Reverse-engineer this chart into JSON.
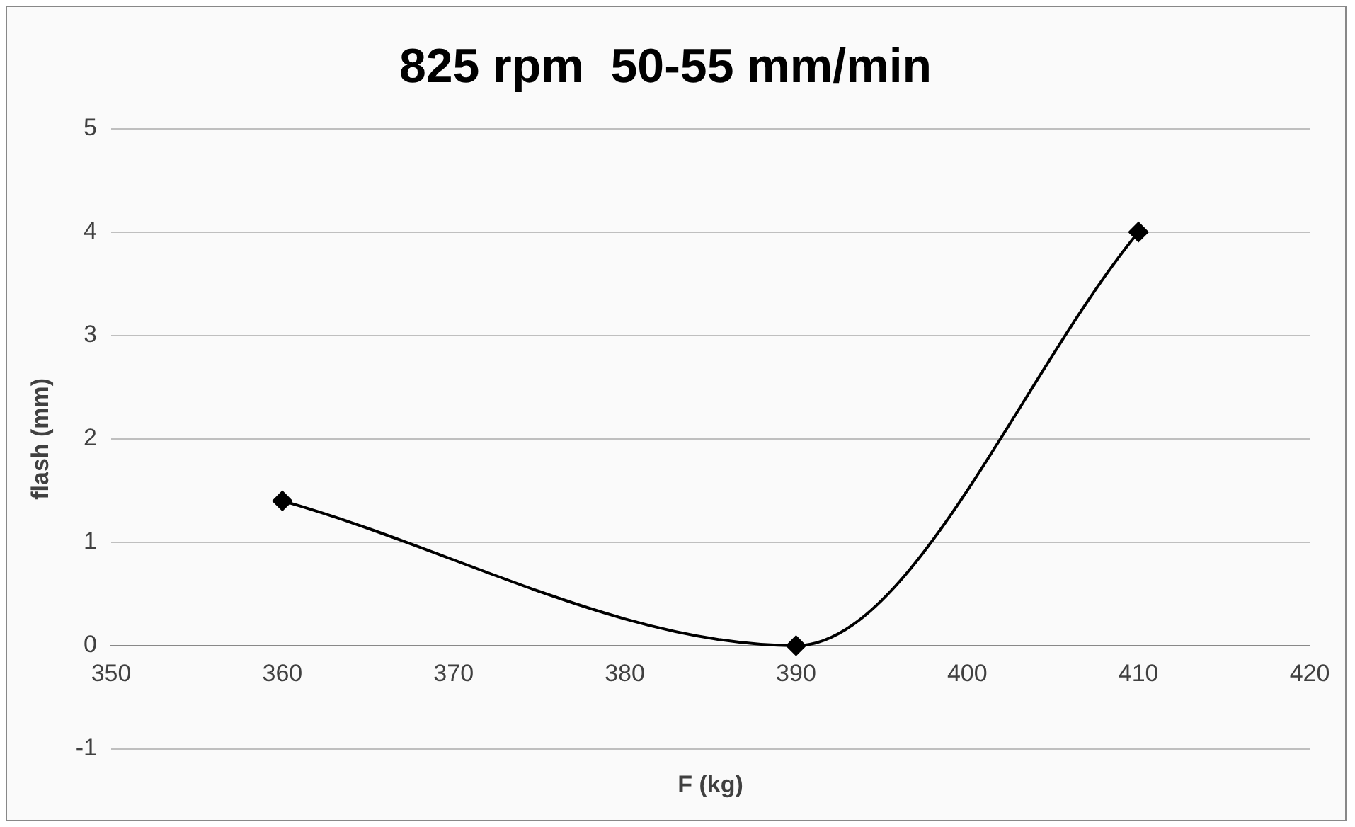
{
  "chart_data": {
    "type": "line",
    "title": "825 rpm  50-55 mm/min",
    "xlabel": "F (kg)",
    "ylabel": "flash (mm)",
    "x": [
      360,
      390,
      410
    ],
    "series": [
      {
        "color": "#000000",
        "values": [
          1.4,
          0,
          4
        ]
      }
    ],
    "xlim": [
      350,
      420
    ],
    "xticks": [
      350,
      360,
      370,
      380,
      390,
      400,
      410,
      420
    ],
    "ylim": [
      -1,
      5
    ],
    "yticks": [
      -1,
      0,
      1,
      2,
      3,
      4,
      5
    ],
    "grid": "y",
    "legend": false,
    "marker": "diamond",
    "line_style": "solid"
  }
}
